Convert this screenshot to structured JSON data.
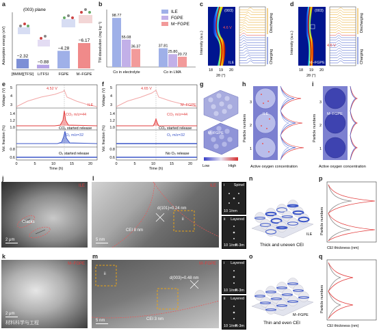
{
  "panel_labels": [
    "a",
    "b",
    "c",
    "d",
    "e",
    "f",
    "g",
    "h",
    "i",
    "j",
    "k",
    "l",
    "m",
    "n",
    "o",
    "p",
    "q"
  ],
  "a": {
    "ylabel": "Adsorption energy (eV)",
    "plane": "(003) plane",
    "categories": [
      "[BMIM][TFSI]",
      "LiTFSI",
      "FGPE",
      "M−FGPE"
    ],
    "values": [
      "−2.32",
      "−0.88",
      "−4.28",
      "−6.17"
    ],
    "chart_data": {
      "type": "bar",
      "categories": [
        "[BMIM][TFSI]",
        "LiTFSI",
        "FGPE",
        "M−FGPE"
      ],
      "values": [
        -2.32,
        -0.88,
        -4.28,
        -6.17
      ],
      "ylim": [
        -7,
        0
      ],
      "colors": [
        "#7d8fd6",
        "#b5a3e6",
        "#9fb0e8",
        "#f08a8a"
      ]
    }
  },
  "b": {
    "ylabel": "TM dissolution (mg kg⁻¹)",
    "legend": [
      "ILE",
      "FGPE",
      "M−FGPE"
    ],
    "categories": [
      "Co in electrolyte",
      "Co in LMA"
    ],
    "labels": [
      "98.77",
      "55.08",
      "36.37",
      "37.81",
      "25.80",
      "20.72"
    ],
    "chart_data": {
      "type": "bar",
      "categories": [
        "Co in electrolyte",
        "Co in LMA"
      ],
      "series": [
        {
          "name": "ILE",
          "values": [
            98.77,
            37.81
          ]
        },
        {
          "name": "FGPE",
          "values": [
            55.08,
            25.8
          ]
        },
        {
          "name": "M−FGPE",
          "values": [
            36.37,
            20.72
          ]
        }
      ],
      "ylim": [
        0,
        110
      ],
      "colors": [
        "#9fb0e8",
        "#c2b0e8",
        "#f29a9a"
      ]
    }
  },
  "c": {
    "ylabel": "Intensity (a.u.)",
    "xlabel": "2θ (°)",
    "ticks": [
      "18",
      "19",
      "20"
    ],
    "tag": "(003)",
    "sample": "ILE",
    "voltage": "4.6 V",
    "discharging": "Discharging",
    "charging": "Charging"
  },
  "d": {
    "ylabel": "Intensity (a.u.)",
    "xlabel": "2θ (°)",
    "ticks": [
      "18",
      "19",
      "20"
    ],
    "tag": "(003)",
    "sample": "M−FGPE",
    "voltage": "4.6 V",
    "discharging": "Discharging",
    "charging": "Charging"
  },
  "e": {
    "ylabel_v": "Voltage (V)",
    "ylabel_f": "Vol. fraction (%)",
    "xlabel": "Time (h)",
    "voltage_peak": "4.52 V",
    "sample": "ILE",
    "co2": "CO₂ m/z=44",
    "co2_note": "CO₂ started release",
    "o2": "O₂ m/z=32",
    "o2_note": "O₂ started release",
    "xticks": [
      "0",
      "5",
      "10",
      "15",
      "20"
    ],
    "vticks": [
      "5",
      "4",
      "3"
    ],
    "fticks_top": [
      "1.4",
      "1.2",
      "1.0"
    ],
    "fticks_bot": [
      "0.8",
      "0.6"
    ]
  },
  "f": {
    "ylabel_v": "Voltage (V)",
    "ylabel_f": "Vol. fraction (%)",
    "xlabel": "Time (h)",
    "voltage_peak": "4.65 V",
    "sample": "M−FGPE",
    "co2": "CO₂ m/z=44",
    "co2_note": "CO₂ started release",
    "o2": "O₂ m/z=32",
    "o2_note": "No O₂ release",
    "xticks": [
      "0",
      "5",
      "10",
      "15",
      "20"
    ],
    "vticks": [
      "5",
      "4",
      "3"
    ],
    "fticks_top": [
      "1.4",
      "1.2",
      "1.0"
    ],
    "fticks_bot": [
      "0.8",
      "0.6"
    ]
  },
  "g": {
    "top": "ILE",
    "bottom": "M−FGPE",
    "low": "Low",
    "high": "High"
  },
  "h": {
    "ylabel": "Particle numbers",
    "xlabel": "Active oxygen concentration",
    "sample": "ILE",
    "ticks": [
      "1",
      "2",
      "3"
    ]
  },
  "i": {
    "ylabel": "Particle numbers",
    "xlabel": "Active oxygen concentration",
    "sample": "M−FGPE",
    "ticks": [
      "1",
      "2",
      "3"
    ]
  },
  "j": {
    "scale": "2 μm",
    "cracks": "Cracks",
    "sample": "ILE"
  },
  "k": {
    "scale": "2 μm",
    "sample": "M−FGPE",
    "watermark": "材料科学与工程"
  },
  "l": {
    "scale": "5 nm",
    "dspacing": "d(101)=0.24 nm",
    "cei": "CEI 8 nm",
    "sample": "ILE",
    "box1": "i",
    "box2": "ii",
    "fft1_label": "i",
    "fft1_phase": "Spinel",
    "fft1_scale": "10 1/nm",
    "fft2_label": "ii",
    "fft2_phase": "Layered",
    "fft2_scale": "10 1/nm",
    "fft2_sg": "R-3m"
  },
  "m": {
    "scale": "5 nm",
    "dspacing": "d(003)=0.48 nm",
    "cei": "CEI 3 nm",
    "sample": "M−FGPE",
    "box1": "i",
    "box2": "ii",
    "fft1_label": "i",
    "fft1_phase": "Layered",
    "fft1_scale": "10 1/nm",
    "fft1_sg": "R-3m",
    "fft2_label": "ii",
    "fft2_phase": "Layered",
    "fft2_scale": "10 1/nm",
    "fft2_sg": "R-3m"
  },
  "n": {
    "caption": "Thick and uneven CEI",
    "sample": "ILE"
  },
  "o": {
    "caption": "Thin and even CEI",
    "sample": "M−FGPE"
  },
  "p": {
    "ylabel": "Particle numbers",
    "xlabel": "CEI thickness (nm)"
  },
  "q": {
    "ylabel": "Particle numbers",
    "xlabel": "CEI thickness (nm)"
  },
  "colors": {
    "ile": "#7d8fd6",
    "fgpe": "#c2b0e8",
    "mfgpe": "#f08a8a",
    "red": "#e23b3b",
    "blue": "#3a55c8",
    "orange": "#e8a317"
  }
}
